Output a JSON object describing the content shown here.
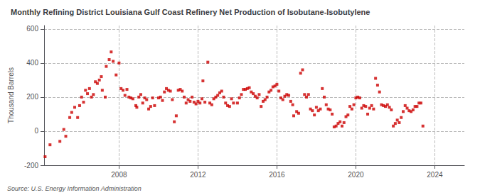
{
  "chart_data": {
    "type": "scatter",
    "title": "Monthly Refining District Louisiana Gulf Coast Refinery Net Production of Isobutane-Isobutylene",
    "ylabel": "Thousand Barrels",
    "source": "Source: U.S. Energy Information Administration",
    "color": "#cc0000",
    "marker": "square",
    "grid": true,
    "xlim": [
      2004.2,
      2025.5
    ],
    "xticks": [
      2008,
      2012,
      2016,
      2020,
      2024
    ],
    "ylim": [
      -200,
      620
    ],
    "yticks": [
      -200,
      0,
      200,
      400,
      600
    ],
    "x": [
      2004.25,
      2004.5,
      2005.0,
      2005.2,
      2005.3,
      2005.5,
      2005.6,
      2005.75,
      2005.9,
      2006.0,
      2006.1,
      2006.2,
      2006.3,
      2006.4,
      2006.5,
      2006.6,
      2006.7,
      2006.8,
      2006.9,
      2007.0,
      2007.1,
      2007.15,
      2007.3,
      2007.35,
      2007.5,
      2007.6,
      2007.7,
      2007.85,
      2008.0,
      2008.1,
      2008.2,
      2008.3,
      2008.4,
      2008.5,
      2008.6,
      2008.7,
      2008.85,
      2008.9,
      2009.0,
      2009.1,
      2009.2,
      2009.3,
      2009.4,
      2009.5,
      2009.6,
      2009.7,
      2009.8,
      2010.0,
      2010.1,
      2010.2,
      2010.3,
      2010.4,
      2010.5,
      2010.6,
      2010.7,
      2010.8,
      2010.9,
      2011.0,
      2011.1,
      2011.2,
      2011.3,
      2011.4,
      2011.5,
      2011.6,
      2011.7,
      2011.8,
      2011.9,
      2012.0,
      2012.1,
      2012.2,
      2012.25,
      2012.35,
      2012.5,
      2012.6,
      2012.7,
      2012.8,
      2012.9,
      2013.0,
      2013.1,
      2013.2,
      2013.3,
      2013.4,
      2013.5,
      2013.6,
      2013.7,
      2013.8,
      2014.0,
      2014.1,
      2014.2,
      2014.3,
      2014.4,
      2014.5,
      2014.6,
      2014.7,
      2014.8,
      2014.9,
      2015.0,
      2015.1,
      2015.2,
      2015.3,
      2015.4,
      2015.5,
      2015.6,
      2015.7,
      2015.8,
      2015.9,
      2016.0,
      2016.1,
      2016.2,
      2016.3,
      2016.4,
      2016.5,
      2016.6,
      2016.7,
      2016.8,
      2016.85,
      2017.0,
      2017.1,
      2017.2,
      2017.3,
      2017.4,
      2017.5,
      2017.6,
      2017.7,
      2017.8,
      2017.9,
      2018.0,
      2018.1,
      2018.2,
      2018.3,
      2018.4,
      2018.5,
      2018.6,
      2018.7,
      2018.8,
      2018.9,
      2019.0,
      2019.1,
      2019.2,
      2019.3,
      2019.4,
      2019.5,
      2019.6,
      2019.7,
      2019.8,
      2019.9,
      2020.0,
      2020.1,
      2020.2,
      2020.3,
      2020.4,
      2020.5,
      2020.6,
      2020.7,
      2020.8,
      2020.9,
      2021.0,
      2021.1,
      2021.2,
      2021.3,
      2021.4,
      2021.5,
      2021.6,
      2021.7,
      2021.8,
      2021.9,
      2022.0,
      2022.1,
      2022.2,
      2022.3,
      2022.4,
      2022.5,
      2022.6,
      2022.7,
      2022.8,
      2022.9,
      2023.0,
      2023.1,
      2023.2,
      2023.3,
      2023.4
    ],
    "values": [
      -150,
      -80,
      -60,
      10,
      -30,
      80,
      110,
      140,
      80,
      150,
      200,
      170,
      240,
      220,
      250,
      200,
      215,
      290,
      280,
      300,
      320,
      240,
      200,
      380,
      420,
      465,
      410,
      330,
      400,
      250,
      240,
      210,
      245,
      200,
      195,
      190,
      150,
      140,
      200,
      215,
      165,
      195,
      185,
      130,
      145,
      195,
      150,
      195,
      200,
      180,
      230,
      250,
      240,
      235,
      185,
      55,
      90,
      240,
      245,
      235,
      200,
      165,
      185,
      175,
      200,
      170,
      160,
      175,
      165,
      190,
      295,
      170,
      405,
      165,
      155,
      190,
      200,
      210,
      225,
      235,
      200,
      165,
      150,
      145,
      190,
      165,
      165,
      195,
      215,
      245,
      245,
      250,
      255,
      230,
      220,
      205,
      195,
      215,
      145,
      175,
      185,
      200,
      230,
      240,
      260,
      265,
      275,
      235,
      195,
      185,
      205,
      215,
      210,
      175,
      155,
      90,
      115,
      105,
      340,
      360,
      215,
      200,
      215,
      130,
      120,
      95,
      140,
      120,
      130,
      250,
      200,
      155,
      130,
      125,
      100,
      25,
      30,
      45,
      55,
      30,
      50,
      85,
      95,
      145,
      130,
      155,
      195,
      200,
      195,
      135,
      150,
      145,
      100,
      135,
      150,
      130,
      310,
      270,
      230,
      155,
      150,
      145,
      155,
      140,
      125,
      30,
      45,
      65,
      50,
      80,
      115,
      150,
      135,
      120,
      115,
      125,
      145,
      145,
      165,
      165,
      30
    ]
  }
}
